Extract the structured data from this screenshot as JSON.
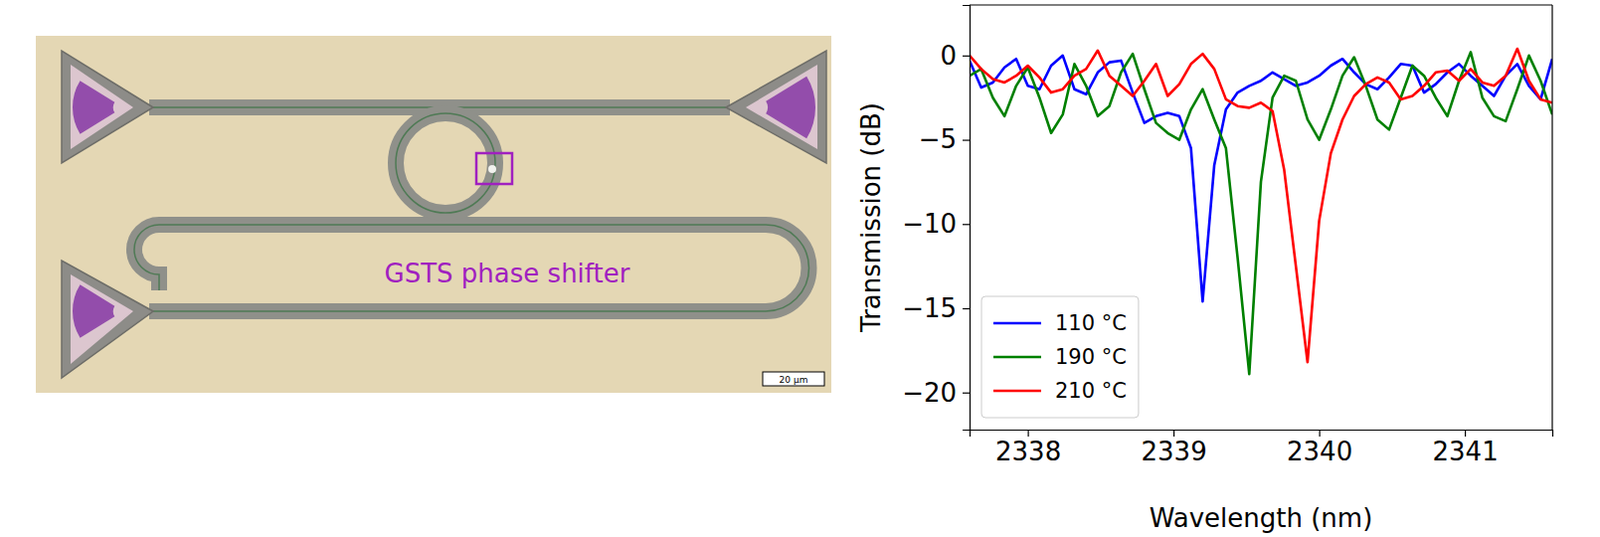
{
  "image": {
    "annotation": "GSTS phase shifter",
    "scale_bar": "20 µm"
  },
  "chart_data": {
    "type": "line",
    "x_label": "Wavelength (nm)",
    "y_label": "Transmission (dB)",
    "x": [
      2337.6,
      2337.68,
      2337.76,
      2337.84,
      2337.92,
      2338.0,
      2338.08,
      2338.16,
      2338.24,
      2338.32,
      2338.4,
      2338.48,
      2338.56,
      2338.64,
      2338.72,
      2338.8,
      2338.88,
      2338.96,
      2339.04,
      2339.12,
      2339.2,
      2339.28,
      2339.36,
      2339.44,
      2339.52,
      2339.6,
      2339.68,
      2339.76,
      2339.84,
      2339.92,
      2340.0,
      2340.08,
      2340.16,
      2340.24,
      2340.32,
      2340.4,
      2340.48,
      2340.56,
      2340.64,
      2340.72,
      2340.8,
      2340.88,
      2340.96,
      2341.04,
      2341.12,
      2341.2,
      2341.28,
      2341.36,
      2341.44,
      2341.52,
      2341.6
    ],
    "series": [
      {
        "name": "110 °C",
        "color": "#0000ff",
        "values": [
          -0.3,
          -1.9,
          -1.6,
          -0.7,
          -0.2,
          -1.8,
          -2.0,
          -0.6,
          0.0,
          -2.0,
          -2.3,
          -1.0,
          -0.4,
          -0.3,
          -2.2,
          -4.0,
          -3.6,
          -3.4,
          -3.6,
          -5.5,
          -14.6,
          -6.5,
          -3.2,
          -2.2,
          -1.8,
          -1.5,
          -1.0,
          -1.4,
          -1.8,
          -1.6,
          -1.2,
          -0.6,
          -0.2,
          -1.0,
          -1.7,
          -2.0,
          -1.3,
          -0.5,
          -0.6,
          -2.2,
          -1.7,
          -1.0,
          -0.5,
          -1.2,
          -1.8,
          -2.4,
          -1.2,
          -0.5,
          -1.8,
          -2.6,
          -0.2
        ]
      },
      {
        "name": "190 °C",
        "color": "#008000",
        "values": [
          -1.2,
          -0.8,
          -2.5,
          -3.6,
          -1.8,
          -0.7,
          -2.5,
          -4.6,
          -3.5,
          -0.5,
          -1.8,
          -3.6,
          -3.0,
          -1.0,
          0.1,
          -2.0,
          -4.0,
          -4.6,
          -5.0,
          -3.2,
          -2.0,
          -3.8,
          -5.5,
          -12.0,
          -18.9,
          -7.5,
          -2.5,
          -1.2,
          -1.5,
          -3.8,
          -5.0,
          -3.2,
          -1.2,
          -0.1,
          -1.8,
          -3.8,
          -4.4,
          -2.5,
          -0.6,
          -1.2,
          -2.5,
          -3.6,
          -1.5,
          0.2,
          -2.5,
          -3.6,
          -3.9,
          -2.0,
          0.0,
          -1.5,
          -3.5
        ]
      },
      {
        "name": "210 °C",
        "color": "#ff0000",
        "values": [
          0.0,
          -0.8,
          -1.4,
          -1.6,
          -1.2,
          -0.6,
          -1.3,
          -2.2,
          -2.0,
          -1.2,
          -0.8,
          0.3,
          -1.2,
          -1.8,
          -2.4,
          -1.5,
          -0.5,
          -2.4,
          -1.7,
          -0.5,
          0.1,
          -0.8,
          -2.6,
          -3.0,
          -3.1,
          -2.8,
          -3.3,
          -6.8,
          -12.5,
          -18.2,
          -9.8,
          -5.8,
          -3.8,
          -2.4,
          -1.7,
          -1.3,
          -1.6,
          -2.6,
          -2.4,
          -1.8,
          -1.0,
          -0.9,
          -1.5,
          -0.8,
          -1.6,
          -1.8,
          -1.2,
          0.4,
          -1.5,
          -2.6,
          -2.8
        ]
      }
    ],
    "xlim": [
      2337.6,
      2341.6
    ],
    "xticks": [
      2338,
      2339,
      2340,
      2341
    ],
    "ylim": [
      -22.2,
      3.0
    ],
    "yticks": [
      {
        "value": -20,
        "label": "−20"
      },
      {
        "value": -15,
        "label": "−15"
      },
      {
        "value": -10,
        "label": "−10"
      },
      {
        "value": -5,
        "label": "−5"
      },
      0
    ],
    "grid": false,
    "legend": "lower left"
  }
}
